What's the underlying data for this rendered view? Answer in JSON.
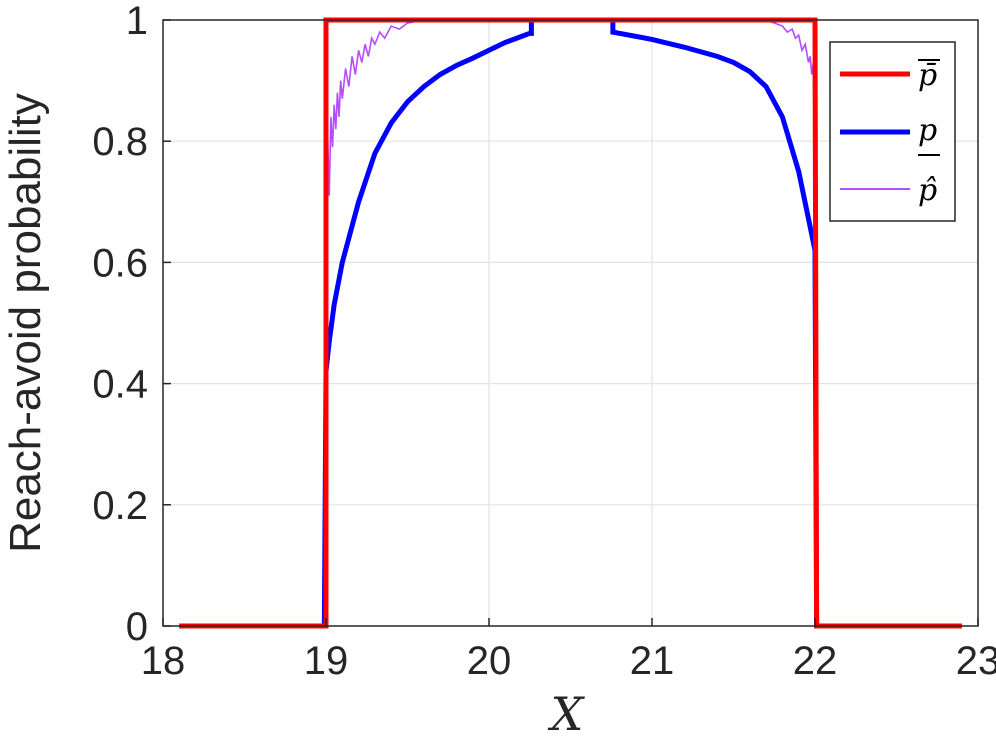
{
  "chart_data": {
    "type": "line",
    "title": "",
    "xlabel": "X",
    "ylabel": "Reach-avoid probability",
    "xlim": [
      18,
      23
    ],
    "ylim": [
      0,
      1
    ],
    "xticks": [
      18,
      19,
      20,
      21,
      22,
      23
    ],
    "yticks": [
      0,
      0.2,
      0.4,
      0.6,
      0.8,
      1
    ],
    "xtick_labels": [
      "18",
      "19",
      "20",
      "21",
      "22",
      "23"
    ],
    "ytick_labels": [
      "0",
      "0.2",
      "0.4",
      "0.6",
      "0.8",
      "1"
    ],
    "grid": true,
    "legend": {
      "placement": "top-right"
    },
    "series": [
      {
        "name": "p̄",
        "color": "#ff0000",
        "x": [
          18.1,
          18.99,
          19.0,
          19.0,
          22.0,
          22.0,
          22.01,
          22.9
        ],
        "y": [
          0,
          0,
          0,
          1,
          1,
          1,
          0,
          0
        ]
      },
      {
        "name": "p",
        "color": "#0000ff",
        "x": [
          18.1,
          18.99,
          19.0,
          19.02,
          19.05,
          19.1,
          19.2,
          19.3,
          19.4,
          19.5,
          19.6,
          19.7,
          19.8,
          19.9,
          20.0,
          20.1,
          20.2,
          20.25,
          20.26,
          20.26,
          20.5,
          20.75,
          20.76,
          20.76,
          20.8,
          21.0,
          21.2,
          21.4,
          21.5,
          21.6,
          21.7,
          21.8,
          21.9,
          22.0,
          22.0,
          22.01,
          22.9
        ],
        "y": [
          0,
          0,
          0.42,
          0.47,
          0.53,
          0.6,
          0.7,
          0.78,
          0.83,
          0.865,
          0.89,
          0.91,
          0.925,
          0.937,
          0.95,
          0.963,
          0.973,
          0.978,
          0.978,
          1,
          1,
          1,
          1,
          0.98,
          0.978,
          0.968,
          0.955,
          0.94,
          0.93,
          0.915,
          0.89,
          0.84,
          0.75,
          0.62,
          0.62,
          0,
          0
        ]
      },
      {
        "name": "p̂",
        "color": "#b44dff",
        "x": [
          18.1,
          18.99,
          19.0,
          19.01,
          19.02,
          19.03,
          19.04,
          19.05,
          19.06,
          19.07,
          19.08,
          19.09,
          19.1,
          19.12,
          19.14,
          19.16,
          19.18,
          19.2,
          19.22,
          19.24,
          19.26,
          19.28,
          19.3,
          19.33,
          19.36,
          19.4,
          19.45,
          19.5,
          19.6,
          19.8,
          20.0,
          20.5,
          21.0,
          21.5,
          21.7,
          21.75,
          21.8,
          21.83,
          21.86,
          21.88,
          21.9,
          21.92,
          21.94,
          21.96,
          21.97,
          21.98,
          21.99,
          22.0,
          22.01,
          22.9
        ],
        "y": [
          0,
          0,
          0.76,
          0.81,
          0.71,
          0.84,
          0.79,
          0.86,
          0.82,
          0.88,
          0.84,
          0.9,
          0.87,
          0.92,
          0.89,
          0.94,
          0.91,
          0.95,
          0.93,
          0.96,
          0.94,
          0.97,
          0.96,
          0.98,
          0.97,
          0.99,
          0.985,
          0.995,
          1,
          1,
          1,
          1,
          1,
          1,
          1,
          0.995,
          0.99,
          0.98,
          0.985,
          0.97,
          0.975,
          0.95,
          0.96,
          0.93,
          0.94,
          0.91,
          0.93,
          0.6,
          0,
          0
        ]
      }
    ]
  }
}
